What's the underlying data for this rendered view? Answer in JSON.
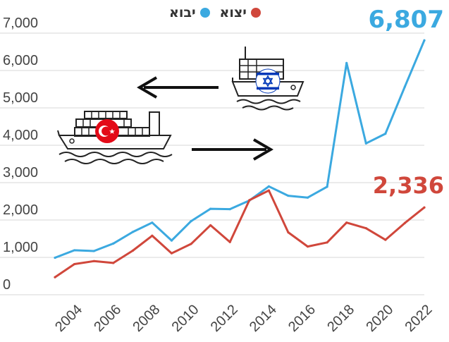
{
  "chart_data": {
    "type": "line",
    "title": "",
    "xlabel": "",
    "ylabel": "",
    "ylim": [
      0,
      7000
    ],
    "xlim": [
      2003,
      2022
    ],
    "grid": true,
    "legend_position": "top-center",
    "yticks": [
      0,
      1000,
      2000,
      3000,
      4000,
      5000,
      6000,
      7000
    ],
    "ytick_labels": [
      "0",
      "1,000",
      "2,000",
      "3,000",
      "4,000",
      "5,000",
      "6,000",
      "7,000"
    ],
    "xticks": [
      2004,
      2006,
      2008,
      2010,
      2012,
      2014,
      2016,
      2018,
      2020,
      2022
    ],
    "xtick_labels": [
      "2004",
      "2006",
      "2008",
      "2010",
      "2012",
      "2014",
      "2016",
      "2018",
      "2020",
      "2022"
    ],
    "x": [
      2003,
      2004,
      2005,
      2006,
      2007,
      2008,
      2009,
      2010,
      2011,
      2012,
      2013,
      2014,
      2015,
      2016,
      2017,
      2018,
      2019,
      2020,
      2021,
      2022
    ],
    "series": [
      {
        "name": "יבוא",
        "color": "#3ba9e0",
        "values": [
          990,
          1190,
          1170,
          1370,
          1680,
          1930,
          1450,
          1970,
          2300,
          2290,
          2520,
          2900,
          2650,
          2600,
          2890,
          6200,
          4050,
          4310,
          5570,
          6807
        ],
        "end_label": "6,807"
      },
      {
        "name": "יצוא",
        "color": "#d0473b",
        "values": [
          470,
          820,
          900,
          850,
          1180,
          1580,
          1110,
          1360,
          1860,
          1410,
          2530,
          2790,
          1670,
          1290,
          1400,
          1930,
          1780,
          1470,
          1920,
          2336
        ],
        "end_label": "2,336"
      }
    ]
  },
  "icons": {
    "arrow_left": "arrow-left-icon",
    "arrow_right": "arrow-right-icon",
    "ship_israel": "cargo-ship-icon",
    "ship_turkey": "cargo-ship-icon",
    "flag_israel": "israel-flag-icon",
    "flag_turkey": "turkey-flag-icon"
  }
}
